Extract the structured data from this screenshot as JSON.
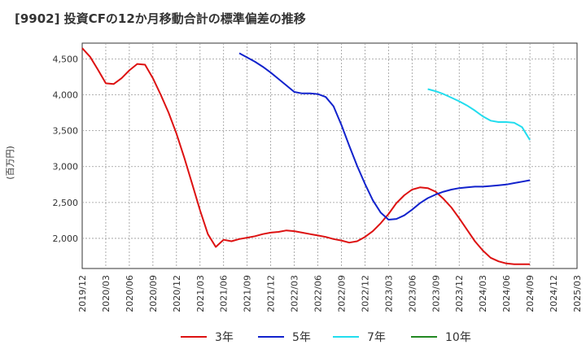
{
  "header": {
    "title": "[9902]  投資CFの12か月移動合計の標準偏差の推移"
  },
  "chart_data": {
    "type": "line",
    "title": "[9902]  投資CFの12か月移動合計の標準偏差の推移",
    "ylabel": "(百万円)",
    "xlabel": "",
    "x_tick_labels": [
      "2019/12",
      "2020/03",
      "2020/06",
      "2020/09",
      "2020/12",
      "2021/03",
      "2021/06",
      "2021/09",
      "2021/12",
      "2022/03",
      "2022/06",
      "2022/09",
      "2022/12",
      "2023/03",
      "2023/06",
      "2023/09",
      "2023/12",
      "2024/03",
      "2024/06",
      "2024/09",
      "2024/12",
      "2025/03"
    ],
    "y_ticks": [
      2000,
      2500,
      3000,
      3500,
      4000,
      4500
    ],
    "y_tick_labels": [
      "2,000",
      "2,500",
      "3,000",
      "3,500",
      "4,000",
      "4,500"
    ],
    "ylim": [
      1580,
      4720
    ],
    "xlim": [
      "2019/12",
      "2025/03"
    ],
    "grid": true,
    "legend_position": "bottom",
    "series": [
      {
        "name": "3年",
        "color": "#dd1111",
        "points": [
          [
            "2019/12",
            4650
          ],
          [
            "2020/01",
            4530
          ],
          [
            "2020/02",
            4350
          ],
          [
            "2020/03",
            4160
          ],
          [
            "2020/04",
            4150
          ],
          [
            "2020/05",
            4230
          ],
          [
            "2020/06",
            4340
          ],
          [
            "2020/07",
            4430
          ],
          [
            "2020/08",
            4420
          ],
          [
            "2020/09",
            4230
          ],
          [
            "2020/10",
            4000
          ],
          [
            "2020/11",
            3750
          ],
          [
            "2020/12",
            3460
          ],
          [
            "2021/01",
            3120
          ],
          [
            "2021/02",
            2760
          ],
          [
            "2021/03",
            2390
          ],
          [
            "2021/04",
            2060
          ],
          [
            "2021/05",
            1880
          ],
          [
            "2021/06",
            1980
          ],
          [
            "2021/07",
            1960
          ],
          [
            "2021/08",
            1990
          ],
          [
            "2021/09",
            2010
          ],
          [
            "2021/10",
            2030
          ],
          [
            "2021/11",
            2060
          ],
          [
            "2021/12",
            2080
          ],
          [
            "2022/01",
            2090
          ],
          [
            "2022/02",
            2110
          ],
          [
            "2022/03",
            2100
          ],
          [
            "2022/04",
            2080
          ],
          [
            "2022/05",
            2060
          ],
          [
            "2022/06",
            2040
          ],
          [
            "2022/07",
            2020
          ],
          [
            "2022/08",
            1990
          ],
          [
            "2022/09",
            1970
          ],
          [
            "2022/10",
            1940
          ],
          [
            "2022/11",
            1960
          ],
          [
            "2022/12",
            2020
          ],
          [
            "2023/01",
            2100
          ],
          [
            "2023/02",
            2210
          ],
          [
            "2023/03",
            2340
          ],
          [
            "2023/04",
            2490
          ],
          [
            "2023/05",
            2600
          ],
          [
            "2023/06",
            2680
          ],
          [
            "2023/07",
            2710
          ],
          [
            "2023/08",
            2700
          ],
          [
            "2023/09",
            2650
          ],
          [
            "2023/10",
            2550
          ],
          [
            "2023/11",
            2430
          ],
          [
            "2023/12",
            2280
          ],
          [
            "2024/01",
            2120
          ],
          [
            "2024/02",
            1960
          ],
          [
            "2024/03",
            1830
          ],
          [
            "2024/04",
            1730
          ],
          [
            "2024/05",
            1680
          ],
          [
            "2024/06",
            1650
          ],
          [
            "2024/07",
            1640
          ],
          [
            "2024/08",
            1640
          ],
          [
            "2024/09",
            1640
          ]
        ]
      },
      {
        "name": "5年",
        "color": "#1122cc",
        "points": [
          [
            "2021/08",
            4580
          ],
          [
            "2021/09",
            4520
          ],
          [
            "2021/10",
            4460
          ],
          [
            "2021/11",
            4390
          ],
          [
            "2021/12",
            4310
          ],
          [
            "2022/01",
            4220
          ],
          [
            "2022/02",
            4130
          ],
          [
            "2022/03",
            4040
          ],
          [
            "2022/04",
            4020
          ],
          [
            "2022/05",
            4020
          ],
          [
            "2022/06",
            4010
          ],
          [
            "2022/07",
            3970
          ],
          [
            "2022/08",
            3840
          ],
          [
            "2022/09",
            3580
          ],
          [
            "2022/10",
            3290
          ],
          [
            "2022/11",
            3010
          ],
          [
            "2022/12",
            2760
          ],
          [
            "2023/01",
            2530
          ],
          [
            "2023/02",
            2360
          ],
          [
            "2023/03",
            2260
          ],
          [
            "2023/04",
            2270
          ],
          [
            "2023/05",
            2320
          ],
          [
            "2023/06",
            2400
          ],
          [
            "2023/07",
            2490
          ],
          [
            "2023/08",
            2560
          ],
          [
            "2023/09",
            2610
          ],
          [
            "2023/10",
            2650
          ],
          [
            "2023/11",
            2680
          ],
          [
            "2023/12",
            2700
          ],
          [
            "2024/01",
            2710
          ],
          [
            "2024/02",
            2720
          ],
          [
            "2024/03",
            2720
          ],
          [
            "2024/04",
            2730
          ],
          [
            "2024/05",
            2740
          ],
          [
            "2024/06",
            2750
          ],
          [
            "2024/07",
            2770
          ],
          [
            "2024/08",
            2790
          ],
          [
            "2024/09",
            2810
          ]
        ]
      },
      {
        "name": "7年",
        "color": "#22ddee",
        "points": [
          [
            "2023/08",
            4080
          ],
          [
            "2023/09",
            4050
          ],
          [
            "2023/10",
            4010
          ],
          [
            "2023/11",
            3960
          ],
          [
            "2023/12",
            3910
          ],
          [
            "2024/01",
            3850
          ],
          [
            "2024/02",
            3780
          ],
          [
            "2024/03",
            3700
          ],
          [
            "2024/04",
            3640
          ],
          [
            "2024/05",
            3620
          ],
          [
            "2024/06",
            3620
          ],
          [
            "2024/07",
            3610
          ],
          [
            "2024/08",
            3550
          ],
          [
            "2024/09",
            3370
          ]
        ]
      },
      {
        "name": "10年",
        "color": "#228822",
        "points": []
      }
    ]
  }
}
